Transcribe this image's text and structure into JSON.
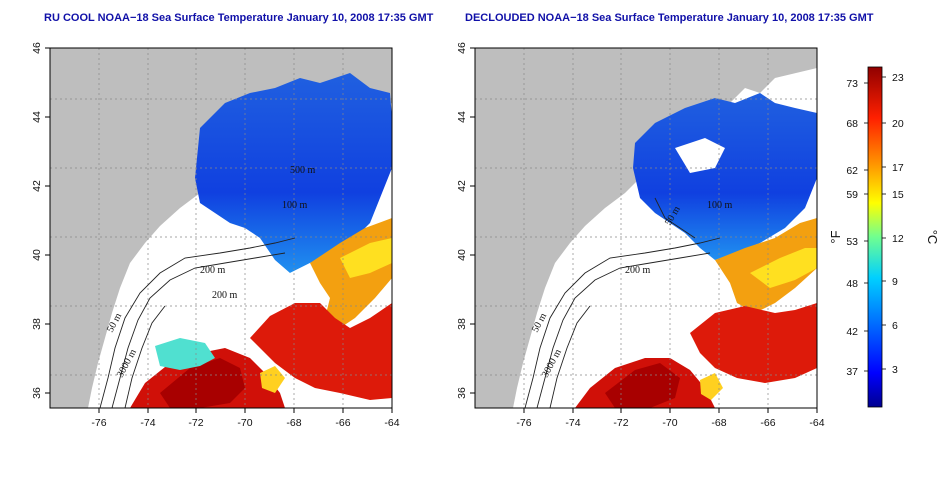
{
  "panels": [
    {
      "id": "rucool",
      "title": "RU COOL NOAA−18 Sea Surface Temperature January 10, 2008 17:35 GMT",
      "x_ticks": [
        "-76",
        "-74",
        "-72",
        "-70",
        "-68",
        "-66",
        "-64"
      ],
      "y_ticks": [
        "46",
        "44",
        "42",
        "40",
        "38",
        "36"
      ],
      "contour_labels": [
        "200 m",
        "50 m",
        "3000 m",
        "100 m",
        "500 m",
        "200 m"
      ]
    },
    {
      "id": "declouded",
      "title": "DECLOUDED NOAA−18 Sea Surface Temperature January 10, 2008 17:35 GMT",
      "x_ticks": [
        "-76",
        "-74",
        "-72",
        "-70",
        "-68",
        "-66",
        "-64"
      ],
      "y_ticks": [
        "46",
        "44",
        "42",
        "40",
        "38",
        "36"
      ],
      "contour_labels": [
        "200 m",
        "50 m",
        "3000 m",
        "100 m",
        "50 m"
      ]
    }
  ],
  "colorbar": {
    "fahrenheit_ticks": [
      "73",
      "68",
      "62",
      "59",
      "53",
      "48",
      "42",
      "37"
    ],
    "celsius_ticks": [
      "23",
      "20",
      "17",
      "15",
      "12",
      "9",
      "6",
      "3"
    ],
    "fahrenheit_unit": "°F",
    "celsius_unit": "°C"
  },
  "colors": {
    "land": "#bebebe",
    "cloud_or_no_data": "#ffffff",
    "cold": "#1040d8",
    "warm": "#c81010",
    "title": "#1010a8"
  }
}
